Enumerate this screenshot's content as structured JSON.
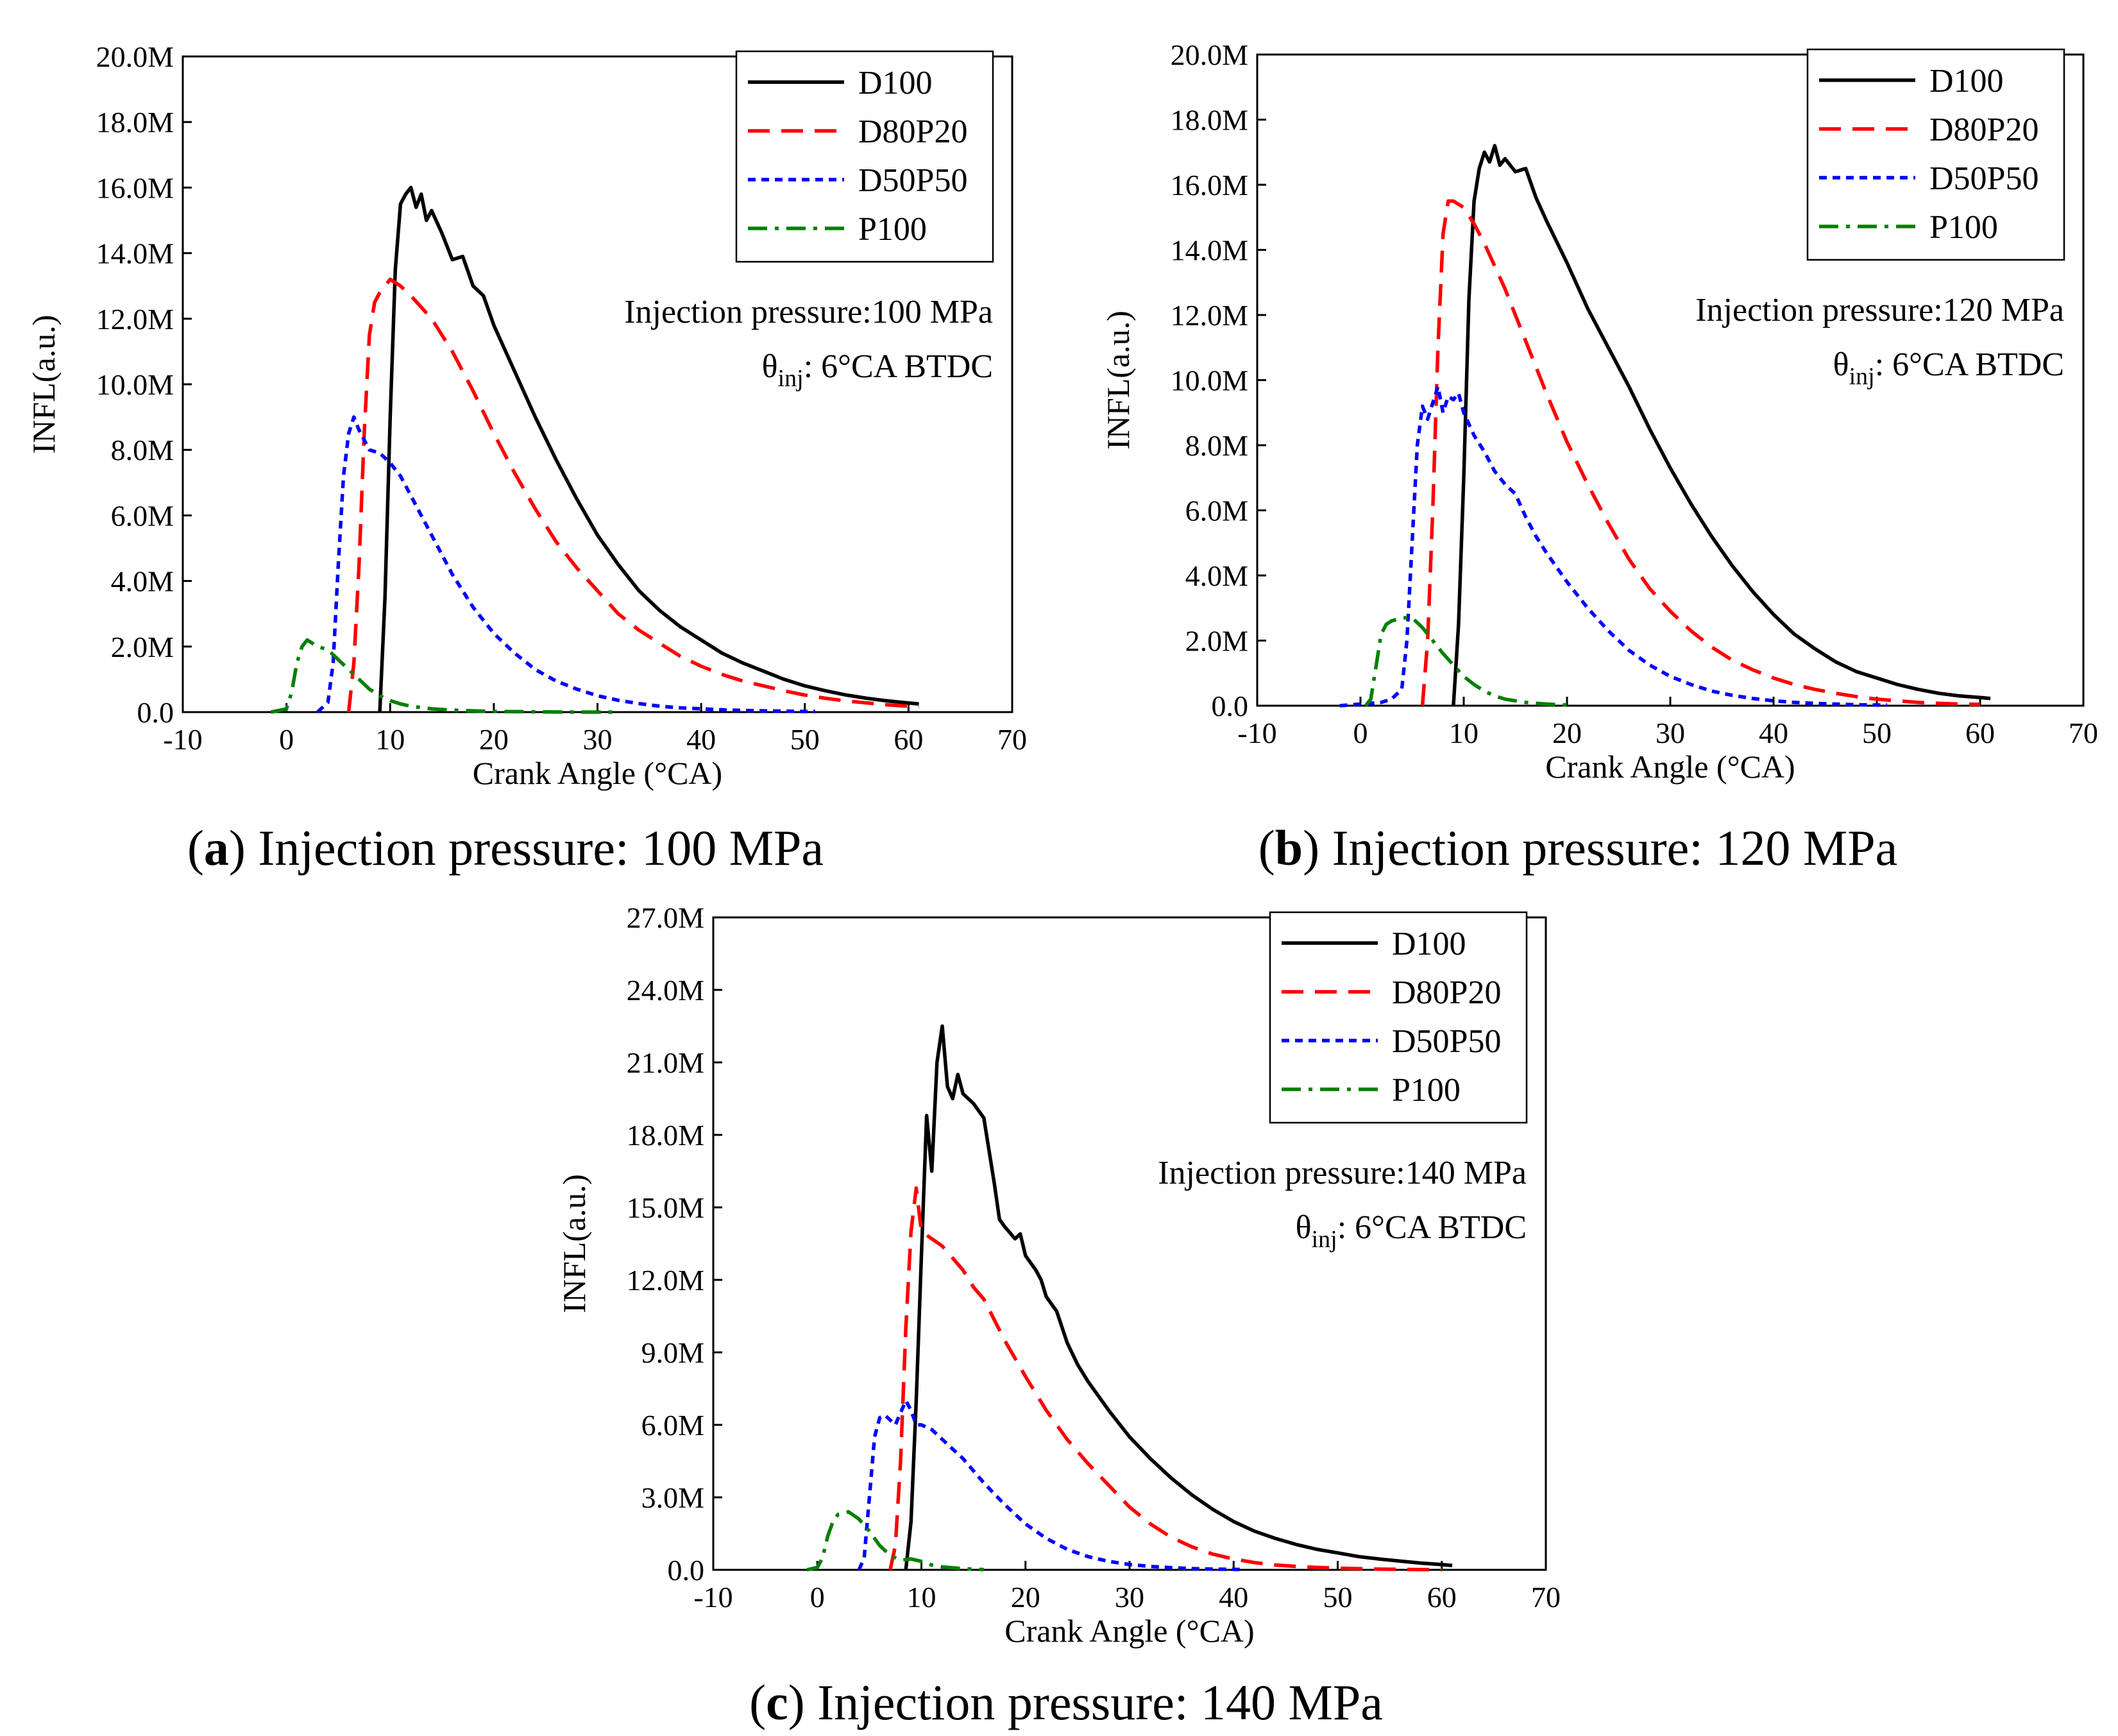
{
  "colors": {
    "D100": "#000000",
    "D80P20": "#ff0000",
    "D50P50": "#0000ff",
    "P100": "#008000"
  },
  "chart_data": [
    {
      "type": "line",
      "title": "",
      "caption": {
        "letter": "a",
        "rest": ") Injection pressure: 100 MPa",
        "open": "("
      },
      "xlabel": "Crank Angle (°CA)",
      "ylabel": "INFL(a.u.)",
      "xlim": [
        -10,
        70
      ],
      "ylim": [
        0,
        20
      ],
      "xticks": [
        "-10",
        "0",
        "10",
        "20",
        "30",
        "40",
        "50",
        "60",
        "70"
      ],
      "yticks": [
        "0.0",
        "2.0M",
        "4.0M",
        "6.0M",
        "8.0M",
        "10.0M",
        "12.0M",
        "14.0M",
        "16.0M",
        "18.0M",
        "20.0M"
      ],
      "annotation": {
        "pressure": "Injection pressure:100 MPa",
        "theta": "θ",
        "sub": "inj",
        "rest": ": 6°CA BTDC"
      },
      "legend": [
        "D100",
        "D80P20",
        "D50P50",
        "P100"
      ],
      "series": [
        {
          "name": "D100",
          "style": "solid",
          "x": [
            9,
            9.5,
            10,
            10.5,
            11,
            11.5,
            12,
            12.5,
            13,
            13.5,
            14,
            15,
            16,
            17,
            18,
            19,
            20,
            22,
            24,
            26,
            28,
            30,
            32,
            34,
            36,
            38,
            40,
            42,
            44,
            46,
            48,
            50,
            52,
            54,
            56,
            58,
            60,
            61
          ],
          "y": [
            0,
            3.5,
            9.0,
            13.5,
            15.5,
            15.8,
            16.0,
            15.4,
            15.8,
            15.0,
            15.3,
            14.6,
            13.8,
            13.9,
            13.0,
            12.7,
            11.8,
            10.4,
            9.0,
            7.7,
            6.5,
            5.4,
            4.5,
            3.7,
            3.1,
            2.6,
            2.2,
            1.8,
            1.5,
            1.25,
            1.0,
            0.8,
            0.65,
            0.52,
            0.42,
            0.34,
            0.28,
            0.25
          ]
        },
        {
          "name": "D80P20",
          "style": "dashed",
          "x": [
            6,
            6.5,
            7,
            7.5,
            8,
            8.5,
            9,
            10,
            11,
            12,
            14,
            16,
            18,
            20,
            22,
            24,
            26,
            28,
            30,
            32,
            34,
            36,
            38,
            40,
            42,
            44,
            46,
            48,
            50,
            52,
            54,
            56,
            58,
            60,
            61
          ],
          "y": [
            0,
            1.5,
            4.5,
            8.5,
            11.5,
            12.5,
            12.8,
            13.2,
            13.0,
            12.7,
            12.0,
            11.0,
            9.8,
            8.5,
            7.3,
            6.2,
            5.2,
            4.4,
            3.7,
            3.0,
            2.5,
            2.1,
            1.7,
            1.4,
            1.15,
            0.95,
            0.8,
            0.65,
            0.52,
            0.42,
            0.34,
            0.28,
            0.22,
            0.18,
            0.16
          ]
        },
        {
          "name": "D50P50",
          "style": "dotted",
          "x": [
            3,
            4,
            4.5,
            5,
            5.5,
            6,
            6.5,
            7,
            8,
            9,
            10,
            11,
            12,
            13,
            14,
            15,
            16,
            17,
            18,
            20,
            22,
            24,
            26,
            28,
            30,
            32,
            34,
            36,
            38,
            40,
            42,
            44,
            46,
            48,
            50,
            51
          ],
          "y": [
            0,
            0.3,
            1.5,
            4.5,
            7.2,
            8.5,
            9.0,
            8.6,
            8.0,
            7.9,
            7.6,
            7.2,
            6.6,
            6.0,
            5.4,
            4.8,
            4.2,
            3.7,
            3.2,
            2.4,
            1.8,
            1.3,
            0.95,
            0.7,
            0.5,
            0.36,
            0.26,
            0.18,
            0.13,
            0.1,
            0.07,
            0.05,
            0.04,
            0.03,
            0.02,
            0.02
          ]
        },
        {
          "name": "P100",
          "style": "dashdot",
          "x": [
            -1.5,
            0,
            0.5,
            1,
            1.5,
            2,
            3,
            4,
            5,
            6,
            7,
            8,
            9,
            10,
            11,
            12,
            14,
            16,
            18,
            20,
            24,
            28,
            32
          ],
          "y": [
            0,
            0.1,
            0.6,
            1.5,
            2.0,
            2.2,
            2.0,
            1.9,
            1.6,
            1.3,
            1.0,
            0.7,
            0.5,
            0.35,
            0.25,
            0.18,
            0.1,
            0.06,
            0.04,
            0.02,
            0.01,
            0.0,
            0.0
          ]
        }
      ]
    },
    {
      "type": "line",
      "title": "",
      "caption": {
        "letter": "b",
        "rest": ") Injection pressure: 120 MPa",
        "open": "("
      },
      "xlabel": "Crank Angle (°CA)",
      "ylabel": "INFL(a.u.)",
      "xlim": [
        -10,
        70
      ],
      "ylim": [
        0,
        20
      ],
      "xticks": [
        "-10",
        "0",
        "10",
        "20",
        "30",
        "40",
        "50",
        "60",
        "70"
      ],
      "yticks": [
        "0.0",
        "2.0M",
        "4.0M",
        "6.0M",
        "8.0M",
        "10.0M",
        "12.0M",
        "14.0M",
        "16.0M",
        "18.0M",
        "20.0M"
      ],
      "annotation": {
        "pressure": "Injection pressure:120 MPa",
        "theta": "θ",
        "sub": "inj",
        "rest": ": 6°CA BTDC"
      },
      "legend": [
        "D100",
        "D80P20",
        "D50P50",
        "P100"
      ],
      "series": [
        {
          "name": "D100",
          "style": "solid",
          "x": [
            9,
            9.5,
            10,
            10.5,
            11,
            11.5,
            12,
            12.5,
            13,
            13.5,
            14,
            15,
            16,
            17,
            18,
            20,
            22,
            24,
            26,
            28,
            30,
            32,
            34,
            36,
            38,
            40,
            42,
            44,
            46,
            48,
            50,
            52,
            54,
            56,
            58,
            60,
            61
          ],
          "y": [
            0,
            2.5,
            7.0,
            12.5,
            15.5,
            16.5,
            17.0,
            16.7,
            17.2,
            16.6,
            16.8,
            16.4,
            16.5,
            15.6,
            14.9,
            13.6,
            12.2,
            11.0,
            9.8,
            8.5,
            7.3,
            6.2,
            5.2,
            4.3,
            3.5,
            2.8,
            2.2,
            1.75,
            1.35,
            1.05,
            0.85,
            0.65,
            0.5,
            0.38,
            0.3,
            0.25,
            0.22
          ]
        },
        {
          "name": "D80P20",
          "style": "dashed",
          "x": [
            6,
            6.5,
            7,
            7.5,
            8,
            8.5,
            9,
            10,
            11,
            12,
            14,
            16,
            18,
            20,
            22,
            24,
            26,
            28,
            30,
            32,
            34,
            36,
            38,
            40,
            42,
            44,
            46,
            48,
            50,
            52,
            54,
            56,
            58,
            60
          ],
          "y": [
            0,
            2.0,
            6.0,
            11.0,
            14.5,
            15.5,
            15.5,
            15.3,
            14.8,
            14.2,
            12.8,
            11.2,
            9.6,
            8.1,
            6.8,
            5.6,
            4.5,
            3.6,
            2.9,
            2.3,
            1.8,
            1.4,
            1.1,
            0.85,
            0.65,
            0.5,
            0.38,
            0.28,
            0.2,
            0.15,
            0.1,
            0.07,
            0.05,
            0.04
          ]
        },
        {
          "name": "D50P50",
          "style": "dotted",
          "x": [
            -2,
            0,
            2,
            3,
            4,
            4.5,
            5,
            5.5,
            6,
            6.5,
            7,
            7.5,
            8,
            8.5,
            9,
            9.5,
            10,
            11,
            12,
            13,
            14,
            15,
            16,
            17,
            18,
            20,
            22,
            24,
            26,
            28,
            30,
            32,
            34,
            36,
            38,
            40,
            42,
            44,
            46,
            48,
            50,
            51
          ],
          "y": [
            0,
            0.05,
            0.1,
            0.2,
            0.5,
            2.0,
            5.0,
            8.0,
            9.2,
            8.8,
            9.3,
            9.8,
            9.0,
            9.5,
            9.4,
            9.6,
            9.0,
            8.3,
            7.8,
            7.2,
            6.8,
            6.5,
            5.8,
            5.2,
            4.7,
            3.8,
            3.0,
            2.3,
            1.7,
            1.25,
            0.9,
            0.65,
            0.45,
            0.32,
            0.22,
            0.15,
            0.1,
            0.07,
            0.05,
            0.03,
            0.02,
            0.02
          ]
        },
        {
          "name": "P100",
          "style": "dashdot",
          "x": [
            0.5,
            1,
            1.5,
            2,
            2.5,
            3,
            4,
            5,
            6,
            7,
            8,
            9,
            10,
            11,
            12,
            13,
            14,
            16,
            18,
            20
          ],
          "y": [
            0,
            0.2,
            1.2,
            2.2,
            2.5,
            2.6,
            2.7,
            2.7,
            2.4,
            2.0,
            1.6,
            1.25,
            0.9,
            0.65,
            0.45,
            0.3,
            0.2,
            0.1,
            0.05,
            0.02
          ]
        }
      ]
    },
    {
      "type": "line",
      "title": "",
      "caption": {
        "letter": "c",
        "rest": ") Injection pressure: 140 MPa",
        "open": "("
      },
      "xlabel": "Crank Angle (°CA)",
      "ylabel": "INFL(a.u.)",
      "xlim": [
        -10,
        70
      ],
      "ylim": [
        0,
        27
      ],
      "xticks": [
        "-10",
        "0",
        "10",
        "20",
        "30",
        "40",
        "50",
        "60",
        "70"
      ],
      "yticks": [
        "0.0",
        "3.0M",
        "6.0M",
        "9.0M",
        "12.0M",
        "15.0M",
        "18.0M",
        "21.0M",
        "24.0M",
        "27.0M"
      ],
      "annotation": {
        "pressure": "Injection pressure:140 MPa",
        "theta": "θ",
        "sub": "inj",
        "rest": ": 6°CA BTDC"
      },
      "legend": [
        "D100",
        "D80P20",
        "D50P50",
        "P100"
      ],
      "series": [
        {
          "name": "D100",
          "style": "solid",
          "x": [
            8.5,
            9,
            9.5,
            10,
            10.5,
            11,
            11.5,
            12,
            12.5,
            13,
            13.5,
            14,
            14.5,
            15,
            16,
            17,
            17.5,
            18,
            19,
            19.5,
            20,
            21,
            21.5,
            22,
            23,
            24,
            25,
            26,
            28,
            30,
            32,
            34,
            36,
            38,
            40,
            42,
            44,
            46,
            48,
            50,
            52,
            54,
            56,
            58,
            60,
            61
          ],
          "y": [
            0,
            2.0,
            7.0,
            13.0,
            18.8,
            16.5,
            21.0,
            22.5,
            20.0,
            19.5,
            20.5,
            19.7,
            19.5,
            19.3,
            18.7,
            16.0,
            14.5,
            14.2,
            13.7,
            13.9,
            13.0,
            12.4,
            12.0,
            11.3,
            10.7,
            9.4,
            8.5,
            7.8,
            6.6,
            5.5,
            4.6,
            3.8,
            3.1,
            2.5,
            2.0,
            1.6,
            1.3,
            1.05,
            0.85,
            0.7,
            0.55,
            0.45,
            0.36,
            0.28,
            0.22,
            0.18
          ]
        },
        {
          "name": "D80P20",
          "style": "dashed",
          "x": [
            7,
            7.5,
            8,
            8.5,
            9,
            9.5,
            10,
            11,
            12,
            13,
            14,
            15,
            16,
            18,
            20,
            22,
            24,
            26,
            28,
            30,
            32,
            34,
            36,
            38,
            40,
            42,
            44,
            46,
            48,
            50,
            52,
            54,
            56,
            58,
            60
          ],
          "y": [
            0,
            1.0,
            4.5,
            10.0,
            14.0,
            15.8,
            14.0,
            13.7,
            13.4,
            12.9,
            12.4,
            11.7,
            11.2,
            9.5,
            8.0,
            6.6,
            5.4,
            4.4,
            3.5,
            2.6,
            1.9,
            1.35,
            0.95,
            0.65,
            0.45,
            0.3,
            0.2,
            0.14,
            0.1,
            0.07,
            0.05,
            0.03,
            0.02,
            0.01,
            0.01
          ]
        },
        {
          "name": "D50P50",
          "style": "dotted",
          "x": [
            4,
            4.5,
            5,
            5.5,
            6,
            6.5,
            7,
            7.5,
            8,
            8.5,
            9,
            9.5,
            10,
            11,
            12,
            13,
            14,
            15,
            16,
            18,
            20,
            22,
            24,
            26,
            28,
            30,
            32,
            34,
            36,
            38,
            40,
            41
          ],
          "y": [
            0,
            0.5,
            3.0,
            5.5,
            6.3,
            6.4,
            6.2,
            6.0,
            6.5,
            7.0,
            6.6,
            6.0,
            6.0,
            5.8,
            5.4,
            5.0,
            4.6,
            4.1,
            3.6,
            2.7,
            1.9,
            1.3,
            0.85,
            0.55,
            0.35,
            0.22,
            0.14,
            0.09,
            0.05,
            0.03,
            0.02,
            0.01
          ]
        },
        {
          "name": "P100",
          "style": "dashdot",
          "x": [
            -1,
            0,
            0.5,
            1,
            1.5,
            2,
            3,
            4,
            5,
            6,
            7,
            8,
            9,
            10,
            11,
            12,
            14,
            16
          ],
          "y": [
            0,
            0.1,
            0.5,
            1.4,
            2.0,
            2.3,
            2.4,
            2.1,
            1.6,
            1.0,
            0.6,
            0.4,
            0.45,
            0.35,
            0.2,
            0.12,
            0.05,
            0.01
          ]
        }
      ]
    }
  ]
}
